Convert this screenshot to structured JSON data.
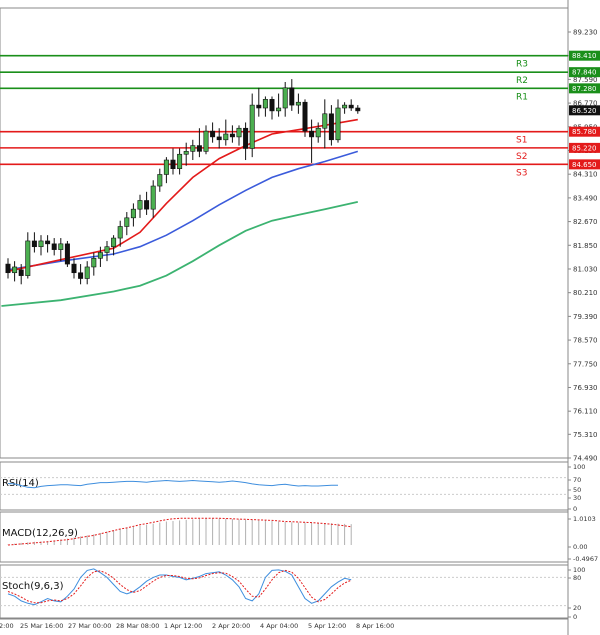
{
  "chart_data": {
    "type": "candlestick",
    "main": {
      "ylim": [
        74.49,
        90.06
      ],
      "price_ticks": [
        "89.230",
        "88.410",
        "87.590",
        "86.770",
        "85.950",
        "85.130",
        "84.310",
        "83.490",
        "82.670",
        "81.850",
        "81.030",
        "80.210",
        "79.390",
        "78.570",
        "77.750",
        "76.930",
        "76.110",
        "75.310",
        "74.490"
      ],
      "current_price": "86.520",
      "levels": [
        {
          "name": "R3",
          "value": 88.41,
          "label": "88.410",
          "color": "#1a8f1a"
        },
        {
          "name": "R2",
          "value": 87.84,
          "label": "87.840",
          "color": "#1a8f1a"
        },
        {
          "name": "R1",
          "value": 87.28,
          "label": "87.280",
          "color": "#1a8f1a"
        },
        {
          "name": "S1",
          "value": 85.78,
          "label": "85.780",
          "color": "#e31a1a"
        },
        {
          "name": "S2",
          "value": 85.22,
          "label": "85.220",
          "color": "#e31a1a"
        },
        {
          "name": "S3",
          "value": 84.65,
          "label": "84.650",
          "color": "#e31a1a"
        }
      ],
      "candles": [
        [
          81.2,
          81.4,
          80.7,
          80.9
        ],
        [
          80.9,
          81.3,
          80.6,
          81.1
        ],
        [
          81.0,
          81.2,
          80.5,
          80.8
        ],
        [
          80.8,
          82.3,
          80.7,
          82.0
        ],
        [
          82.0,
          82.3,
          81.6,
          81.8
        ],
        [
          81.8,
          82.2,
          81.5,
          82.0
        ],
        [
          82.0,
          82.2,
          81.6,
          81.9
        ],
        [
          81.9,
          82.1,
          81.5,
          81.7
        ],
        [
          81.7,
          82.1,
          81.3,
          81.9
        ],
        [
          81.9,
          82.0,
          81.1,
          81.2
        ],
        [
          81.2,
          81.4,
          80.7,
          80.9
        ],
        [
          80.9,
          81.2,
          80.5,
          80.7
        ],
        [
          80.7,
          81.3,
          80.5,
          81.1
        ],
        [
          81.1,
          81.6,
          80.8,
          81.4
        ],
        [
          81.4,
          81.8,
          81.1,
          81.6
        ],
        [
          81.6,
          82.0,
          81.3,
          81.8
        ],
        [
          81.8,
          82.2,
          81.5,
          82.1
        ],
        [
          82.1,
          82.7,
          81.8,
          82.5
        ],
        [
          82.5,
          83.0,
          82.2,
          82.8
        ],
        [
          82.8,
          83.3,
          82.5,
          83.1
        ],
        [
          83.1,
          83.6,
          82.8,
          83.4
        ],
        [
          83.4,
          83.7,
          82.9,
          83.1
        ],
        [
          83.1,
          84.1,
          82.8,
          83.9
        ],
        [
          83.9,
          84.5,
          83.7,
          84.3
        ],
        [
          84.3,
          84.9,
          84.0,
          84.8
        ],
        [
          84.8,
          85.2,
          84.3,
          84.5
        ],
        [
          84.5,
          85.2,
          84.3,
          85.0
        ],
        [
          85.0,
          85.4,
          84.6,
          85.1
        ],
        [
          85.1,
          85.5,
          84.8,
          85.3
        ],
        [
          85.3,
          85.9,
          84.9,
          85.1
        ],
        [
          85.1,
          86.0,
          85.0,
          85.8
        ],
        [
          85.8,
          86.1,
          85.4,
          85.6
        ],
        [
          85.6,
          85.9,
          85.2,
          85.5
        ],
        [
          85.5,
          86.2,
          85.3,
          85.7
        ],
        [
          85.7,
          86.0,
          85.4,
          85.6
        ],
        [
          85.6,
          86.0,
          85.3,
          85.9
        ],
        [
          85.9,
          86.1,
          84.8,
          85.2
        ],
        [
          85.2,
          87.1,
          84.9,
          86.7
        ],
        [
          86.7,
          87.3,
          86.3,
          86.6
        ],
        [
          86.6,
          87.0,
          86.3,
          86.9
        ],
        [
          86.9,
          87.0,
          86.2,
          86.5
        ],
        [
          86.5,
          87.1,
          86.3,
          86.6
        ],
        [
          86.6,
          87.5,
          86.3,
          87.3
        ],
        [
          87.3,
          87.6,
          86.5,
          86.7
        ],
        [
          86.7,
          87.1,
          86.4,
          86.8
        ],
        [
          86.8,
          86.9,
          85.6,
          85.8
        ],
        [
          85.8,
          86.2,
          84.7,
          85.6
        ],
        [
          85.6,
          86.1,
          85.4,
          85.9
        ],
        [
          85.9,
          86.9,
          85.2,
          86.4
        ],
        [
          86.4,
          86.7,
          85.3,
          85.5
        ],
        [
          85.5,
          86.9,
          85.4,
          86.6
        ],
        [
          86.6,
          86.8,
          86.4,
          86.7
        ],
        [
          86.7,
          86.9,
          86.5,
          86.6
        ],
        [
          86.6,
          86.7,
          86.4,
          86.5
        ]
      ],
      "ma_red": [
        [
          0,
          80.95
        ],
        [
          8,
          81.35
        ],
        [
          16,
          81.75
        ],
        [
          20,
          82.3
        ],
        [
          24,
          83.3
        ],
        [
          28,
          84.2
        ],
        [
          32,
          84.85
        ],
        [
          36,
          85.3
        ],
        [
          40,
          85.7
        ],
        [
          44,
          85.85
        ],
        [
          48,
          86.0
        ],
        [
          53,
          86.2
        ]
      ],
      "ma_blue": [
        [
          0,
          81.0
        ],
        [
          8,
          81.3
        ],
        [
          16,
          81.55
        ],
        [
          20,
          81.8
        ],
        [
          24,
          82.2
        ],
        [
          28,
          82.7
        ],
        [
          32,
          83.25
        ],
        [
          36,
          83.75
        ],
        [
          40,
          84.2
        ],
        [
          44,
          84.5
        ],
        [
          48,
          84.75
        ],
        [
          53,
          85.1
        ]
      ],
      "ma_green": [
        [
          -1,
          79.75
        ],
        [
          8,
          79.95
        ],
        [
          16,
          80.25
        ],
        [
          20,
          80.45
        ],
        [
          24,
          80.8
        ],
        [
          28,
          81.3
        ],
        [
          32,
          81.85
        ],
        [
          36,
          82.35
        ],
        [
          40,
          82.7
        ],
        [
          44,
          82.9
        ],
        [
          48,
          83.1
        ],
        [
          53,
          83.35
        ]
      ]
    },
    "x_ticks": [
      "2:00",
      "25 Mar 16:00",
      "27 Mar 00:00",
      "28 Mar 08:00",
      "1 Apr 12:00",
      "2 Apr 20:00",
      "4 Apr 04:00",
      "5 Apr 12:00",
      "8 Apr 16:00"
    ],
    "rsi": {
      "label": "RSI(14)",
      "ticks": [
        "100",
        "70",
        "50",
        "30",
        "0"
      ],
      "values": [
        56,
        55,
        51,
        47,
        46,
        49,
        51,
        52,
        53,
        53,
        52,
        51,
        54,
        56,
        58,
        58,
        59,
        60,
        61,
        61,
        60,
        59,
        61,
        62,
        63,
        62,
        61,
        62,
        63,
        62,
        61,
        60,
        59,
        60,
        62,
        60,
        58,
        55,
        53,
        52,
        51,
        53,
        54,
        52,
        50,
        51,
        50,
        50,
        51,
        52,
        52
      ],
      "color": "#3e8ede"
    },
    "macd": {
      "label": "MACD(12,26,9)",
      "ticks": [
        "1.0103",
        "0.00",
        "-0.4967"
      ],
      "hist": [
        0.02,
        0.05,
        0.08,
        0.1,
        0.12,
        0.13,
        0.14,
        0.16,
        0.2,
        0.24,
        0.28,
        0.32,
        0.36,
        0.4,
        0.45,
        0.5,
        0.55,
        0.6,
        0.64,
        0.68,
        0.72,
        0.76,
        0.8,
        0.84,
        0.88,
        0.9,
        0.92,
        0.94,
        0.96,
        0.98,
        1.0,
        1.0,
        0.99,
        0.98,
        0.97,
        0.96,
        0.95,
        0.94,
        0.93,
        0.92,
        0.9,
        0.88,
        0.86,
        0.85,
        0.84,
        0.84,
        0.83,
        0.82,
        0.82,
        0.81,
        0.8,
        0.79,
        0.78
      ],
      "signal": [
        0.0,
        0.02,
        0.04,
        0.06,
        0.08,
        0.1,
        0.12,
        0.15,
        0.18,
        0.2,
        0.24,
        0.28,
        0.32,
        0.36,
        0.42,
        0.48,
        0.54,
        0.6,
        0.64,
        0.7,
        0.76,
        0.8,
        0.85,
        0.9,
        0.95,
        0.98,
        1.0,
        1.0,
        1.0,
        1.0,
        1.0,
        1.0,
        1.0,
        0.99,
        0.98,
        0.97,
        0.96,
        0.95,
        0.94,
        0.93,
        0.92,
        0.9,
        0.88,
        0.87,
        0.86,
        0.85,
        0.84,
        0.82,
        0.8,
        0.78,
        0.75,
        0.72,
        0.68
      ],
      "color": "#e31a1a"
    },
    "stoch": {
      "label": "Stoch(9,6,3)",
      "ticks": [
        "100",
        "80",
        "20",
        "0"
      ],
      "k": [
        45,
        40,
        30,
        25,
        22,
        28,
        35,
        30,
        28,
        40,
        55,
        80,
        95,
        98,
        90,
        80,
        65,
        50,
        45,
        50,
        60,
        72,
        80,
        85,
        85,
        82,
        80,
        75,
        78,
        82,
        88,
        90,
        92,
        85,
        75,
        60,
        35,
        30,
        45,
        80,
        95,
        96,
        93,
        85,
        60,
        35,
        25,
        30,
        45,
        60,
        70,
        78,
        75
      ],
      "d": [
        50,
        45,
        38,
        30,
        26,
        26,
        30,
        32,
        30,
        35,
        45,
        62,
        80,
        92,
        94,
        88,
        78,
        65,
        54,
        48,
        52,
        62,
        72,
        80,
        84,
        84,
        82,
        78,
        77,
        79,
        84,
        88,
        90,
        89,
        82,
        72,
        55,
        40,
        38,
        55,
        75,
        90,
        95,
        91,
        78,
        58,
        38,
        28,
        33,
        45,
        58,
        68,
        74
      ],
      "k_color": "#3e8ede",
      "d_color": "#e31a1a"
    }
  }
}
